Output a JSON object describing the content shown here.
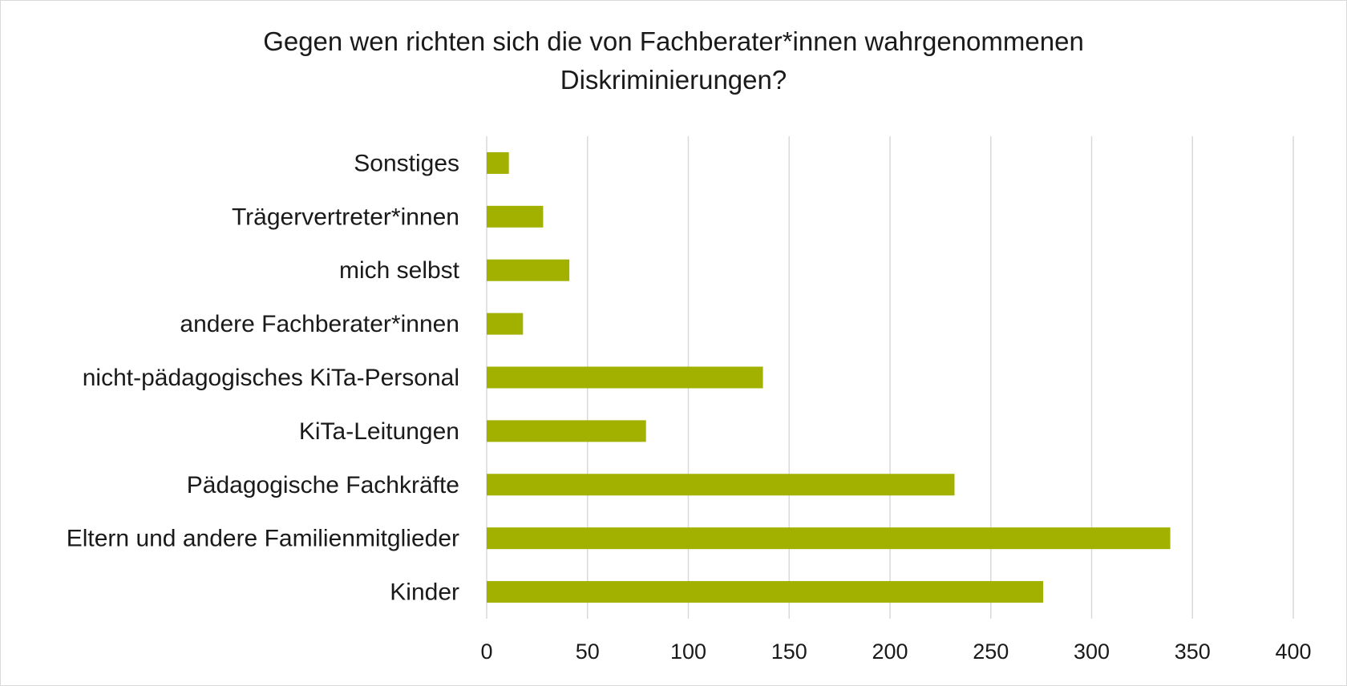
{
  "chart_data": {
    "type": "bar",
    "orientation": "horizontal",
    "title_lines": [
      "Gegen wen richten sich die von Fachberater*innen wahrgenommenen",
      "Diskriminierungen?"
    ],
    "categories": [
      "Sonstiges",
      "Trägervertreter*innen",
      "mich selbst",
      "andere Fachberater*innen",
      "nicht-pädagogisches KiTa-Personal",
      "KiTa-Leitungen",
      "Pädagogische Fachkräfte",
      "Eltern und andere Familienmitglieder",
      "Kinder"
    ],
    "values": [
      11,
      28,
      41,
      18,
      137,
      79,
      232,
      339,
      276
    ],
    "xlim": [
      0,
      400
    ],
    "x_ticks": [
      "0",
      "50",
      "100",
      "150",
      "200",
      "250",
      "300",
      "350",
      "400"
    ],
    "grid": "vertical",
    "bar_color": "#a2b000",
    "grid_color": "#d9d9d9",
    "xlabel": "",
    "ylabel": ""
  }
}
